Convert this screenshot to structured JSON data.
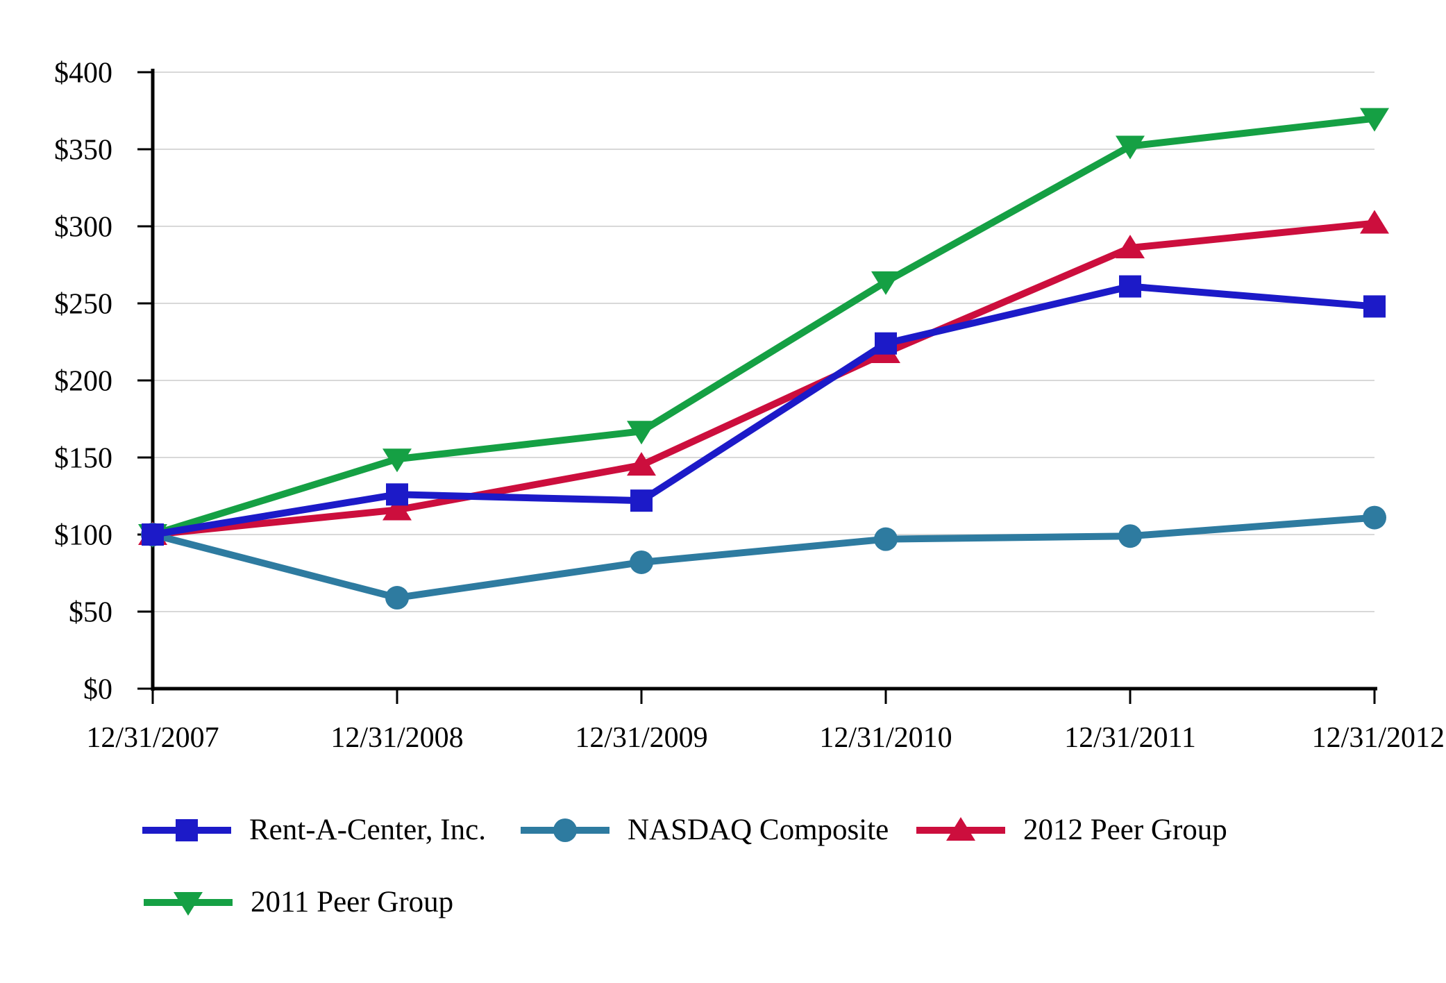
{
  "chart_data": {
    "type": "line",
    "title": "",
    "categories": [
      "12/31/2007",
      "12/31/2008",
      "12/31/2009",
      "12/31/2010",
      "12/31/2011",
      "12/31/2012"
    ],
    "series": [
      {
        "name": "Rent-A-Center, Inc.",
        "marker": "square",
        "color": "#1c1ac8",
        "values": [
          100,
          126,
          122,
          224,
          261,
          248
        ]
      },
      {
        "name": "NASDAQ Composite",
        "marker": "circle",
        "color": "#2e7ba0",
        "values": [
          100,
          59,
          82,
          97,
          99,
          111
        ]
      },
      {
        "name": "2012 Peer Group",
        "marker": "triangle-up",
        "color": "#cc0e3d",
        "values": [
          100,
          116,
          145,
          218,
          286,
          302
        ]
      },
      {
        "name": "2011 Peer Group",
        "marker": "triangle-down",
        "color": "#15a044",
        "values": [
          100,
          149,
          167,
          264,
          352,
          370
        ]
      }
    ],
    "y_tick_labels": [
      "$0",
      "$50",
      "$100",
      "$150",
      "$200",
      "$250",
      "$300",
      "$350",
      "$400"
    ],
    "ylim": [
      0,
      400
    ],
    "y_tick_step": 50,
    "grid": "horizontal",
    "gridline_color": "#d8d8d8",
    "axis_color": "#000000",
    "background": "#ffffff",
    "legend_position": "bottom-left",
    "xlabel": "",
    "ylabel": ""
  }
}
